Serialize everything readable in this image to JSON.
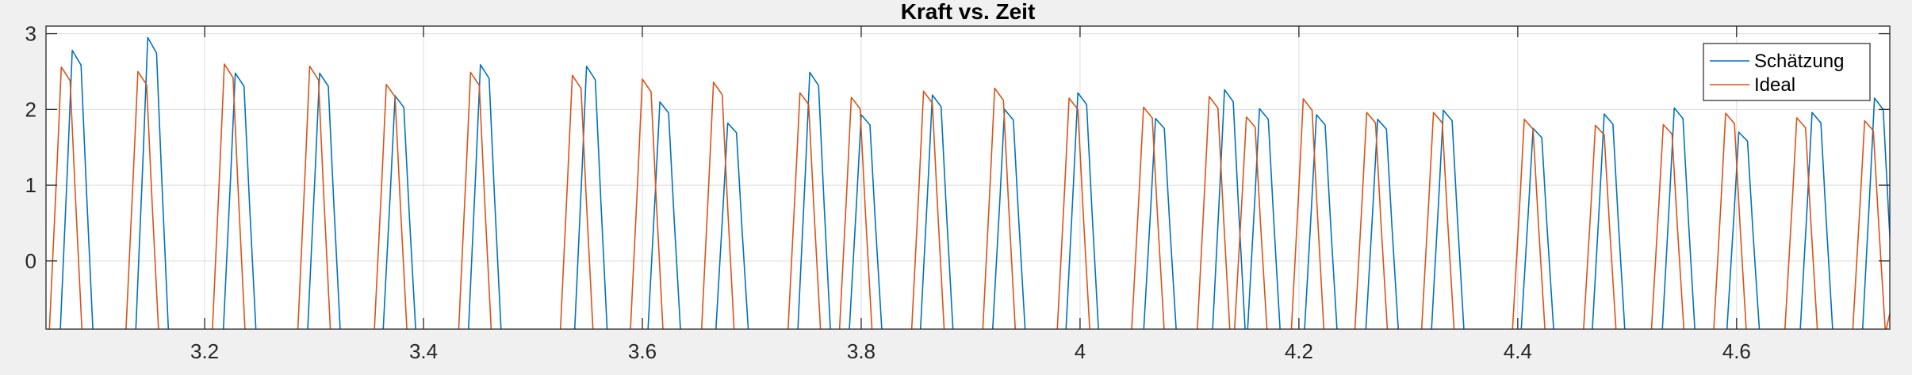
{
  "chart_data": {
    "type": "line",
    "title": "Kraft vs. Zeit",
    "xlabel": "",
    "ylabel": "",
    "xlim": [
      3.055,
      4.74
    ],
    "ylim": [
      -0.9,
      3.1
    ],
    "xticks": [
      3.2,
      3.4,
      3.6,
      3.8,
      4.0,
      4.2,
      4.4,
      4.6
    ],
    "xtick_labels": [
      "3.2",
      "3.4",
      "3.6",
      "3.8",
      "4",
      "4.2",
      "4.4",
      "4.6"
    ],
    "yticks": [
      0,
      1,
      2,
      3
    ],
    "ytick_labels": [
      "0",
      "1",
      "2",
      "3"
    ],
    "grid": true,
    "legend_position": "top-right",
    "series": [
      {
        "name": "Schätzung",
        "color": "#0072BD",
        "peaks": [
          {
            "x": 3.083,
            "y": 2.78
          },
          {
            "x": 3.152,
            "y": 2.95
          },
          {
            "x": 3.232,
            "y": 2.48
          },
          {
            "x": 3.309,
            "y": 2.48
          },
          {
            "x": 3.378,
            "y": 2.18
          },
          {
            "x": 3.456,
            "y": 2.59
          },
          {
            "x": 3.553,
            "y": 2.57
          },
          {
            "x": 3.62,
            "y": 2.1
          },
          {
            "x": 3.682,
            "y": 1.82
          },
          {
            "x": 3.757,
            "y": 2.49
          },
          {
            "x": 3.804,
            "y": 1.93
          },
          {
            "x": 3.869,
            "y": 2.19
          },
          {
            "x": 3.935,
            "y": 2.0
          },
          {
            "x": 4.002,
            "y": 2.22
          },
          {
            "x": 4.073,
            "y": 1.88
          },
          {
            "x": 4.136,
            "y": 2.26
          },
          {
            "x": 4.168,
            "y": 2.01
          },
          {
            "x": 4.22,
            "y": 1.93
          },
          {
            "x": 4.276,
            "y": 1.87
          },
          {
            "x": 4.336,
            "y": 1.99
          },
          {
            "x": 4.418,
            "y": 1.75
          },
          {
            "x": 4.483,
            "y": 1.94
          },
          {
            "x": 4.547,
            "y": 2.02
          },
          {
            "x": 4.606,
            "y": 1.7
          },
          {
            "x": 4.673,
            "y": 1.96
          },
          {
            "x": 4.73,
            "y": 2.15
          }
        ]
      },
      {
        "name": "Ideal",
        "color": "#D95319",
        "peaks": [
          {
            "x": 3.073,
            "y": 2.56
          },
          {
            "x": 3.143,
            "y": 2.5
          },
          {
            "x": 3.222,
            "y": 2.6
          },
          {
            "x": 3.3,
            "y": 2.57
          },
          {
            "x": 3.37,
            "y": 2.33
          },
          {
            "x": 3.447,
            "y": 2.49
          },
          {
            "x": 3.54,
            "y": 2.45
          },
          {
            "x": 3.604,
            "y": 2.4
          },
          {
            "x": 3.669,
            "y": 2.36
          },
          {
            "x": 3.748,
            "y": 2.22
          },
          {
            "x": 3.795,
            "y": 2.16
          },
          {
            "x": 3.861,
            "y": 2.24
          },
          {
            "x": 3.926,
            "y": 2.28
          },
          {
            "x": 3.994,
            "y": 2.15
          },
          {
            "x": 4.062,
            "y": 2.03
          },
          {
            "x": 4.122,
            "y": 2.17
          },
          {
            "x": 4.156,
            "y": 1.9
          },
          {
            "x": 4.208,
            "y": 2.14
          },
          {
            "x": 4.266,
            "y": 1.96
          },
          {
            "x": 4.327,
            "y": 1.96
          },
          {
            "x": 4.41,
            "y": 1.87
          },
          {
            "x": 4.475,
            "y": 1.79
          },
          {
            "x": 4.537,
            "y": 1.8
          },
          {
            "x": 4.594,
            "y": 1.95
          },
          {
            "x": 4.659,
            "y": 1.89
          },
          {
            "x": 4.721,
            "y": 1.85
          }
        ]
      }
    ]
  }
}
